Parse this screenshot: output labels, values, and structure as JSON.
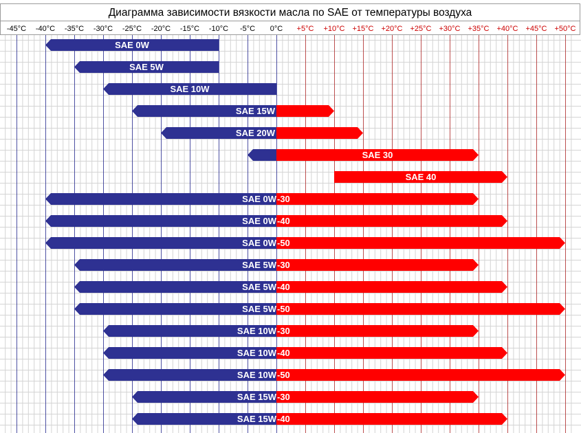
{
  "chart_data": {
    "type": "bar",
    "orientation": "horizontal-range",
    "title": "Диаграмма зависимости вязкости масла по SAE от температуры воздуха",
    "x_ticks": [
      {
        "value": -45,
        "label": "-45°C"
      },
      {
        "value": -40,
        "label": "-40°C"
      },
      {
        "value": -35,
        "label": "-35°C"
      },
      {
        "value": -30,
        "label": "-30°C"
      },
      {
        "value": -25,
        "label": "-25°C"
      },
      {
        "value": -20,
        "label": "-20°C"
      },
      {
        "value": -15,
        "label": "-15°C"
      },
      {
        "value": -10,
        "label": "-10°C"
      },
      {
        "value": -5,
        "label": "-5°C"
      },
      {
        "value": 0,
        "label": "0°C"
      },
      {
        "value": 5,
        "label": "+5°C"
      },
      {
        "value": 10,
        "label": "+10°C"
      },
      {
        "value": 15,
        "label": "+15°C"
      },
      {
        "value": 20,
        "label": "+20°C"
      },
      {
        "value": 25,
        "label": "+25°C"
      },
      {
        "value": 30,
        "label": "+30°C"
      },
      {
        "value": 35,
        "label": "+35°C"
      },
      {
        "value": 40,
        "label": "+40°C"
      },
      {
        "value": 45,
        "label": "+45°C"
      },
      {
        "value": 50,
        "label": "+50°C"
      }
    ],
    "xlim": [
      -47.5,
      51
    ],
    "colors": {
      "cold": "#2e3192",
      "hot": "#ff0000",
      "cold_tick": "#000000",
      "hot_tick": "#cc0000",
      "cold_gridline": "#2e3192",
      "hot_gridline": "#b03030",
      "minor_grid": "#d4d4d4"
    },
    "bars": [
      {
        "winter": "SAE 0W",
        "summer": "",
        "min": -40,
        "max": -10
      },
      {
        "winter": "SAE 5W",
        "summer": "",
        "min": -35,
        "max": -10
      },
      {
        "winter": "SAE 10W",
        "summer": "",
        "min": -30,
        "max": 0
      },
      {
        "winter": "SAE 15W",
        "summer": "",
        "min": -25,
        "max": 10
      },
      {
        "winter": "SAE 20W",
        "summer": "",
        "min": -20,
        "max": 15
      },
      {
        "winter": "",
        "summer": "SAE 30",
        "min": -5,
        "max": 35
      },
      {
        "winter": "",
        "summer": "SAE 40",
        "min": 10,
        "max": 40
      },
      {
        "winter": "SAE 0W",
        "summer": "-30",
        "min": -40,
        "max": 35
      },
      {
        "winter": "SAE 0W",
        "summer": "-40",
        "min": -40,
        "max": 40
      },
      {
        "winter": "SAE 0W",
        "summer": "-50",
        "min": -40,
        "max": 50
      },
      {
        "winter": "SAE 5W",
        "summer": "-30",
        "min": -35,
        "max": 35
      },
      {
        "winter": "SAE 5W",
        "summer": "-40",
        "min": -35,
        "max": 40
      },
      {
        "winter": "SAE 5W",
        "summer": "-50",
        "min": -35,
        "max": 50
      },
      {
        "winter": "SAE 10W",
        "summer": "-30",
        "min": -30,
        "max": 35
      },
      {
        "winter": "SAE 10W",
        "summer": "-40",
        "min": -30,
        "max": 40
      },
      {
        "winter": "SAE 10W",
        "summer": "-50",
        "min": -30,
        "max": 50
      },
      {
        "winter": "SAE 15W",
        "summer": "-30",
        "min": -25,
        "max": 35
      },
      {
        "winter": "SAE 15W",
        "summer": "-40",
        "min": -25,
        "max": 40
      }
    ]
  }
}
